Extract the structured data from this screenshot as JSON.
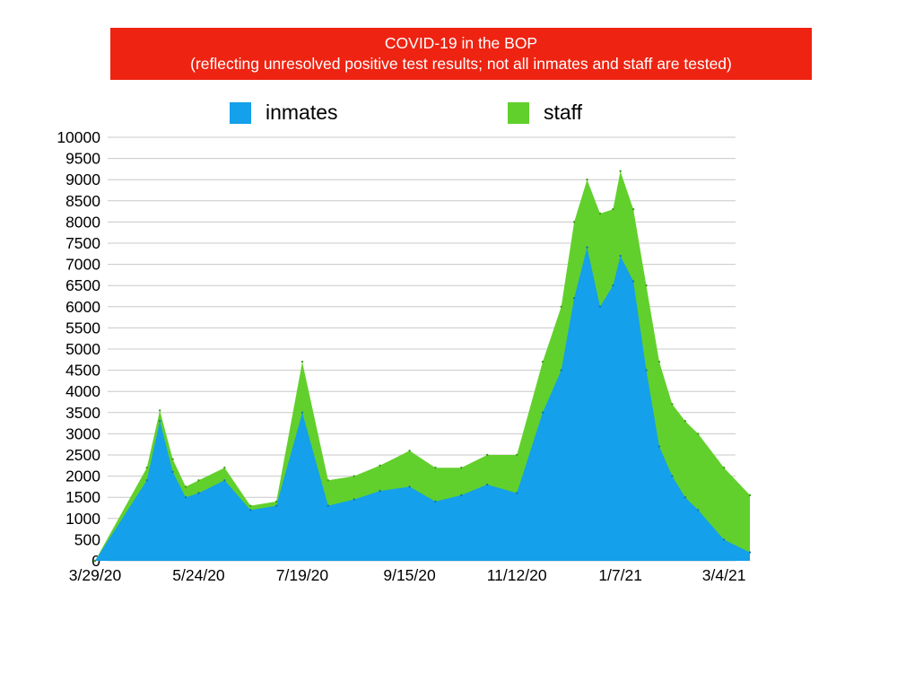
{
  "title": {
    "line1": "COVID-19 in the BOP",
    "line2": "(reflecting unresolved positive test results; not all inmates and staff are tested)"
  },
  "colors": {
    "banner": "#ee2311",
    "inmates": "#14a0ea",
    "staff": "#62d02c",
    "grid": "#c8c8c8"
  },
  "chart_data": {
    "type": "area",
    "stacked": true,
    "grid": true,
    "legend_position": "top",
    "ylim": [
      0,
      10000
    ],
    "y_ticks": [
      0,
      500,
      1000,
      1500,
      2000,
      2500,
      3000,
      3500,
      4000,
      4500,
      5000,
      5500,
      6000,
      6500,
      7000,
      7500,
      8000,
      8500,
      9000,
      9500,
      10000
    ],
    "x_tick_labels": [
      "3/29/20",
      "5/24/20",
      "7/19/20",
      "9/15/20",
      "11/12/20",
      "1/7/21",
      "3/4/21"
    ],
    "x": [
      "3/29/20",
      "4/26/20",
      "5/3/20",
      "5/10/20",
      "5/17/20",
      "5/24/20",
      "6/7/20",
      "6/21/20",
      "7/5/20",
      "7/19/20",
      "8/2/20",
      "8/16/20",
      "8/30/20",
      "9/15/20",
      "9/29/20",
      "10/13/20",
      "10/27/20",
      "11/12/20",
      "11/26/20",
      "12/6/20",
      "12/13/20",
      "12/20/20",
      "12/27/20",
      "1/3/21",
      "1/7/21",
      "1/14/21",
      "1/21/21",
      "1/28/21",
      "2/4/21",
      "2/11/21",
      "2/18/21",
      "3/4/21",
      "3/18/21"
    ],
    "series": [
      {
        "name": "inmates",
        "values": [
          0,
          1900,
          3300,
          2100,
          1500,
          1600,
          1900,
          1200,
          1300,
          3500,
          1300,
          1450,
          1650,
          1750,
          1400,
          1550,
          1800,
          1600,
          3500,
          4500,
          6200,
          7400,
          6000,
          6500,
          7200,
          6600,
          4500,
          2700,
          2000,
          1500,
          1200,
          500,
          200
        ]
      },
      {
        "name": "staff",
        "values": [
          0,
          300,
          250,
          300,
          250,
          300,
          300,
          100,
          100,
          1200,
          600,
          550,
          600,
          850,
          800,
          650,
          700,
          900,
          1200,
          1500,
          1800,
          1600,
          2200,
          1800,
          2000,
          1700,
          2000,
          2000,
          1700,
          1800,
          1800,
          1700,
          1350
        ]
      }
    ]
  }
}
